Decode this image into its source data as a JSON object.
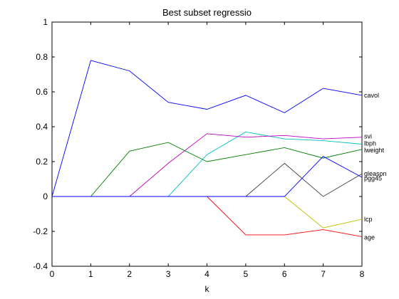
{
  "chart_data": {
    "type": "line",
    "title": "Best subset regressio",
    "xlabel": "k",
    "ylabel": "",
    "xlim": [
      0,
      8
    ],
    "ylim": [
      -0.4,
      1
    ],
    "x": [
      0,
      1,
      2,
      3,
      4,
      5,
      6,
      7,
      8
    ],
    "xticks": [
      "0",
      "1",
      "2",
      "3",
      "4",
      "5",
      "6",
      "7",
      "8"
    ],
    "yticks": [
      "-0.4",
      "-0.2",
      "0",
      "0.2",
      "0.4",
      "0.6",
      "0.8",
      "1"
    ],
    "grid": false,
    "series": [
      {
        "name": "lcavol",
        "color": "#0000ff",
        "values": [
          0,
          0.78,
          0.72,
          0.54,
          0.5,
          0.58,
          0.48,
          0.62,
          0.58
        ]
      },
      {
        "name": "lweight",
        "color": "#008000",
        "values": [
          0,
          0,
          0.26,
          0.31,
          0.2,
          0.24,
          0.28,
          0.22,
          0.27
        ]
      },
      {
        "name": "age",
        "color": "#ff0000",
        "values": [
          0,
          0,
          0,
          0,
          0,
          -0.22,
          -0.22,
          -0.19,
          -0.23
        ]
      },
      {
        "name": "lbph",
        "color": "#00bfbf",
        "values": [
          0,
          0,
          0,
          0,
          0.24,
          0.37,
          0.33,
          0.32,
          0.3
        ]
      },
      {
        "name": "svi",
        "color": "#bf00bf",
        "values": [
          0,
          0,
          0,
          0.19,
          0.36,
          0.34,
          0.35,
          0.33,
          0.34
        ]
      },
      {
        "name": "lcp",
        "color": "#bfbf00",
        "values": [
          0,
          0,
          0,
          0,
          0,
          0,
          0,
          -0.18,
          -0.13
        ]
      },
      {
        "name": "gleason",
        "color": "#404040",
        "values": [
          0,
          0,
          0,
          0,
          0,
          0,
          0.19,
          0,
          0.13
        ]
      },
      {
        "name": "pgg45",
        "color": "#0000ff",
        "values": [
          0,
          0,
          0,
          0,
          0,
          0,
          0,
          0.23,
          0.11
        ]
      }
    ],
    "end_labels": [
      {
        "text": "cavol",
        "value": 0.58
      },
      {
        "text": "svi",
        "value": 0.345
      },
      {
        "text": "lbph",
        "value": 0.305
      },
      {
        "text": "lweight",
        "value": 0.265
      },
      {
        "text": "gleason",
        "value": 0.13
      },
      {
        "text": "pgg45",
        "value": 0.105
      },
      {
        "text": "lcp",
        "value": -0.13
      },
      {
        "text": "age",
        "value": -0.235
      }
    ]
  }
}
